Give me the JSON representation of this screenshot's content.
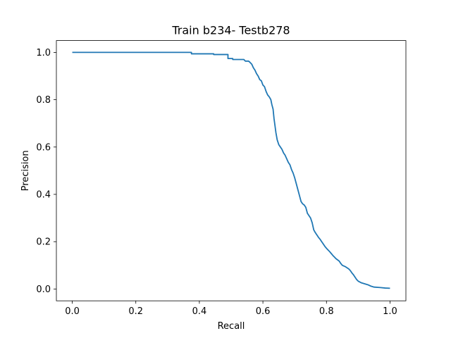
{
  "chart_data": {
    "type": "line",
    "title": "Train b234- Testb278",
    "xlabel": "Recall",
    "ylabel": "Precision",
    "xlim": [
      -0.05,
      1.05
    ],
    "ylim": [
      -0.05,
      1.05
    ],
    "xticks": [
      "0.0",
      "0.2",
      "0.4",
      "0.6",
      "0.8",
      "1.0"
    ],
    "yticks": [
      "0.0",
      "0.2",
      "0.4",
      "0.6",
      "0.8",
      "1.0"
    ],
    "grid": false,
    "series": [
      {
        "color": "#1f77b4",
        "points": [
          [
            0.0,
            1.0
          ],
          [
            0.375,
            1.0
          ],
          [
            0.375,
            0.994
          ],
          [
            0.445,
            0.994
          ],
          [
            0.445,
            0.991
          ],
          [
            0.49,
            0.991
          ],
          [
            0.49,
            0.974
          ],
          [
            0.505,
            0.974
          ],
          [
            0.505,
            0.97
          ],
          [
            0.54,
            0.97
          ],
          [
            0.545,
            0.963
          ],
          [
            0.555,
            0.963
          ],
          [
            0.56,
            0.957
          ],
          [
            0.565,
            0.95
          ],
          [
            0.57,
            0.935
          ],
          [
            0.575,
            0.925
          ],
          [
            0.58,
            0.91
          ],
          [
            0.585,
            0.9
          ],
          [
            0.59,
            0.885
          ],
          [
            0.595,
            0.88
          ],
          [
            0.6,
            0.862
          ],
          [
            0.605,
            0.855
          ],
          [
            0.61,
            0.835
          ],
          [
            0.615,
            0.82
          ],
          [
            0.62,
            0.812
          ],
          [
            0.625,
            0.8
          ],
          [
            0.628,
            0.78
          ],
          [
            0.632,
            0.76
          ],
          [
            0.635,
            0.72
          ],
          [
            0.638,
            0.69
          ],
          [
            0.641,
            0.66
          ],
          [
            0.645,
            0.63
          ],
          [
            0.65,
            0.61
          ],
          [
            0.655,
            0.6
          ],
          [
            0.66,
            0.59
          ],
          [
            0.665,
            0.575
          ],
          [
            0.67,
            0.565
          ],
          [
            0.675,
            0.55
          ],
          [
            0.68,
            0.535
          ],
          [
            0.685,
            0.525
          ],
          [
            0.69,
            0.505
          ],
          [
            0.695,
            0.49
          ],
          [
            0.7,
            0.47
          ],
          [
            0.705,
            0.445
          ],
          [
            0.71,
            0.42
          ],
          [
            0.715,
            0.395
          ],
          [
            0.72,
            0.37
          ],
          [
            0.725,
            0.36
          ],
          [
            0.73,
            0.355
          ],
          [
            0.735,
            0.345
          ],
          [
            0.74,
            0.32
          ],
          [
            0.745,
            0.31
          ],
          [
            0.75,
            0.3
          ],
          [
            0.755,
            0.28
          ],
          [
            0.76,
            0.25
          ],
          [
            0.765,
            0.238
          ],
          [
            0.77,
            0.228
          ],
          [
            0.775,
            0.218
          ],
          [
            0.78,
            0.21
          ],
          [
            0.785,
            0.2
          ],
          [
            0.79,
            0.19
          ],
          [
            0.795,
            0.18
          ],
          [
            0.8,
            0.172
          ],
          [
            0.805,
            0.165
          ],
          [
            0.81,
            0.158
          ],
          [
            0.815,
            0.15
          ],
          [
            0.82,
            0.142
          ],
          [
            0.825,
            0.135
          ],
          [
            0.83,
            0.128
          ],
          [
            0.84,
            0.118
          ],
          [
            0.845,
            0.108
          ],
          [
            0.85,
            0.1
          ],
          [
            0.86,
            0.094
          ],
          [
            0.87,
            0.085
          ],
          [
            0.875,
            0.078
          ],
          [
            0.88,
            0.068
          ],
          [
            0.885,
            0.06
          ],
          [
            0.89,
            0.05
          ],
          [
            0.895,
            0.04
          ],
          [
            0.9,
            0.033
          ],
          [
            0.91,
            0.026
          ],
          [
            0.92,
            0.022
          ],
          [
            0.93,
            0.018
          ],
          [
            0.94,
            0.012
          ],
          [
            0.95,
            0.008
          ],
          [
            0.97,
            0.006
          ],
          [
            0.985,
            0.004
          ],
          [
            1.0,
            0.003
          ]
        ]
      }
    ]
  }
}
